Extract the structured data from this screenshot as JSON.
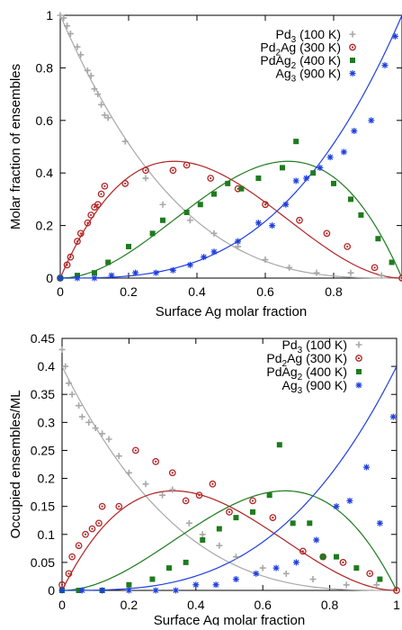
{
  "chart_data": [
    {
      "type": "scatter",
      "xlabel": "Surface Ag molar fraction",
      "ylabel": "Molar fraction of ensembles",
      "xlim": [
        0,
        1
      ],
      "ylim": [
        0,
        1
      ],
      "x_ticks": [
        "0",
        "0.2",
        "0.4",
        "0.6",
        "0.8"
      ],
      "y_ticks": [
        "0",
        "0.2",
        "0.4",
        "0.6",
        "0.8",
        "1"
      ],
      "legend_position": "top-right",
      "series": [
        {
          "label_main": "Pd",
          "label_sub": "3",
          "label_rest": " (100 K)",
          "color": "#a8a8a8",
          "marker": "plus",
          "curve": "pd3",
          "points": [
            [
              0.0,
              1.0
            ],
            [
              0.01,
              0.99
            ],
            [
              0.02,
              0.96
            ],
            [
              0.03,
              0.93
            ],
            [
              0.05,
              0.88
            ],
            [
              0.06,
              0.85
            ],
            [
              0.08,
              0.79
            ],
            [
              0.09,
              0.77
            ],
            [
              0.1,
              0.72
            ],
            [
              0.11,
              0.7
            ],
            [
              0.12,
              0.66
            ],
            [
              0.13,
              0.62
            ],
            [
              0.14,
              0.61
            ],
            [
              0.19,
              0.52
            ],
            [
              0.25,
              0.38
            ],
            [
              0.3,
              0.28
            ],
            [
              0.38,
              0.22
            ],
            [
              0.45,
              0.17
            ],
            [
              0.52,
              0.12
            ],
            [
              0.6,
              0.07
            ],
            [
              0.67,
              0.04
            ],
            [
              0.75,
              0.02
            ],
            [
              0.85,
              0.02
            ],
            [
              0.94,
              0.01
            ],
            [
              1.0,
              0.0
            ]
          ]
        },
        {
          "label_main": "Pd",
          "label_sub": "2",
          "label_rest": "Ag (300 K)",
          "color": "#b22222",
          "marker": "circle",
          "curve": "pd2ag",
          "points": [
            [
              0.0,
              0.0
            ],
            [
              0.02,
              0.05
            ],
            [
              0.03,
              0.08
            ],
            [
              0.05,
              0.14
            ],
            [
              0.06,
              0.17
            ],
            [
              0.08,
              0.21
            ],
            [
              0.09,
              0.24
            ],
            [
              0.1,
              0.27
            ],
            [
              0.11,
              0.28
            ],
            [
              0.12,
              0.32
            ],
            [
              0.13,
              0.35
            ],
            [
              0.19,
              0.36
            ],
            [
              0.25,
              0.41
            ],
            [
              0.33,
              0.41
            ],
            [
              0.37,
              0.43
            ],
            [
              0.44,
              0.38
            ],
            [
              0.52,
              0.34
            ],
            [
              0.6,
              0.28
            ],
            [
              0.7,
              0.22
            ],
            [
              0.78,
              0.17
            ],
            [
              0.84,
              0.12
            ],
            [
              0.92,
              0.04
            ],
            [
              1.0,
              0.0
            ]
          ]
        },
        {
          "label_main": "PdAg",
          "label_sub": "2",
          "label_rest": " (400 K)",
          "color": "#1e7b1e",
          "marker": "square",
          "curve": "pdag2",
          "points": [
            [
              0.0,
              0.0
            ],
            [
              0.05,
              0.01
            ],
            [
              0.1,
              0.02
            ],
            [
              0.14,
              0.06
            ],
            [
              0.2,
              0.12
            ],
            [
              0.27,
              0.17
            ],
            [
              0.3,
              0.22
            ],
            [
              0.37,
              0.25
            ],
            [
              0.41,
              0.28
            ],
            [
              0.45,
              0.32
            ],
            [
              0.49,
              0.36
            ],
            [
              0.53,
              0.34
            ],
            [
              0.58,
              0.38
            ],
            [
              0.65,
              0.42
            ],
            [
              0.69,
              0.52
            ],
            [
              0.74,
              0.4
            ],
            [
              0.8,
              0.36
            ],
            [
              0.85,
              0.3
            ],
            [
              0.88,
              0.24
            ],
            [
              0.93,
              0.15
            ],
            [
              0.97,
              0.06
            ]
          ]
        },
        {
          "label_main": "Ag",
          "label_sub": "3",
          "label_rest": " (900 K)",
          "color": "#1f3fe0",
          "marker": "star",
          "curve": "ag3",
          "points": [
            [
              0.0,
              0.0
            ],
            [
              0.05,
              0.0
            ],
            [
              0.1,
              0.0
            ],
            [
              0.15,
              0.01
            ],
            [
              0.22,
              0.02
            ],
            [
              0.28,
              0.02
            ],
            [
              0.33,
              0.03
            ],
            [
              0.38,
              0.05
            ],
            [
              0.42,
              0.08
            ],
            [
              0.45,
              0.1
            ],
            [
              0.52,
              0.14
            ],
            [
              0.58,
              0.21
            ],
            [
              0.62,
              0.2
            ],
            [
              0.66,
              0.28
            ],
            [
              0.69,
              0.37
            ],
            [
              0.72,
              0.38
            ],
            [
              0.76,
              0.42
            ],
            [
              0.79,
              0.46
            ],
            [
              0.83,
              0.48
            ],
            [
              0.86,
              0.56
            ],
            [
              0.91,
              0.6
            ],
            [
              0.95,
              0.81
            ],
            [
              0.98,
              0.92
            ]
          ]
        }
      ]
    },
    {
      "type": "scatter",
      "xlabel": "Surface Ag molar fraction",
      "ylabel": "Occupied ensembles/ML",
      "xlim": [
        0,
        1
      ],
      "ylim": [
        0,
        0.45
      ],
      "x_ticks": [
        "0",
        "0.2",
        "0.4",
        "0.6",
        "0.8",
        "1"
      ],
      "y_ticks": [
        "0",
        "0.05",
        "0.1",
        "0.15",
        "0.2",
        "0.25",
        "0.3",
        "0.35",
        "0.4",
        "0.45"
      ],
      "legend_position": "top-right",
      "series": [
        {
          "label_main": "Pd",
          "label_sub": "3",
          "label_rest": " (100 K)",
          "color": "#a8a8a8",
          "marker": "plus",
          "curve": "pd3b",
          "points": [
            [
              0.0,
              0.43
            ],
            [
              0.01,
              0.4
            ],
            [
              0.02,
              0.37
            ],
            [
              0.03,
              0.35
            ],
            [
              0.05,
              0.33
            ],
            [
              0.06,
              0.31
            ],
            [
              0.08,
              0.3
            ],
            [
              0.1,
              0.29
            ],
            [
              0.12,
              0.28
            ],
            [
              0.14,
              0.27
            ],
            [
              0.17,
              0.24
            ],
            [
              0.2,
              0.21
            ],
            [
              0.25,
              0.19
            ],
            [
              0.3,
              0.17
            ],
            [
              0.33,
              0.18
            ],
            [
              0.38,
              0.12
            ],
            [
              0.42,
              0.1
            ],
            [
              0.47,
              0.08
            ],
            [
              0.52,
              0.06
            ],
            [
              0.6,
              0.04
            ],
            [
              0.67,
              0.03
            ],
            [
              0.75,
              0.02
            ],
            [
              0.85,
              0.01
            ],
            [
              0.94,
              0.01
            ]
          ]
        },
        {
          "label_main": "Pd",
          "label_sub": "2",
          "label_rest": "Ag (300 K)",
          "color": "#b22222",
          "marker": "circle",
          "curve": "pd2agb",
          "points": [
            [
              0.0,
              0.01
            ],
            [
              0.02,
              0.03
            ],
            [
              0.03,
              0.06
            ],
            [
              0.05,
              0.08
            ],
            [
              0.07,
              0.1
            ],
            [
              0.09,
              0.11
            ],
            [
              0.11,
              0.12
            ],
            [
              0.12,
              0.15
            ],
            [
              0.17,
              0.15
            ],
            [
              0.22,
              0.25
            ],
            [
              0.28,
              0.23
            ],
            [
              0.33,
              0.21
            ],
            [
              0.37,
              0.16
            ],
            [
              0.41,
              0.17
            ],
            [
              0.45,
              0.19
            ],
            [
              0.5,
              0.14
            ],
            [
              0.57,
              0.16
            ],
            [
              0.63,
              0.13
            ],
            [
              0.72,
              0.07
            ],
            [
              0.78,
              0.06
            ],
            [
              0.84,
              0.05
            ],
            [
              0.92,
              0.03
            ],
            [
              1.0,
              0.0
            ]
          ]
        },
        {
          "label_main": "PdAg",
          "label_sub": "2",
          "label_rest": " (400 K)",
          "color": "#1e7b1e",
          "marker": "square",
          "curve": "pdag2b",
          "points": [
            [
              0.0,
              0.0
            ],
            [
              0.05,
              0.0
            ],
            [
              0.12,
              0.0
            ],
            [
              0.2,
              0.01
            ],
            [
              0.27,
              0.02
            ],
            [
              0.32,
              0.04
            ],
            [
              0.37,
              0.05
            ],
            [
              0.42,
              0.09
            ],
            [
              0.47,
              0.11
            ],
            [
              0.52,
              0.13
            ],
            [
              0.57,
              0.14
            ],
            [
              0.62,
              0.17
            ],
            [
              0.65,
              0.26
            ],
            [
              0.69,
              0.12
            ],
            [
              0.74,
              0.12
            ],
            [
              0.78,
              0.06
            ],
            [
              0.82,
              0.06
            ],
            [
              0.88,
              0.04
            ],
            [
              0.95,
              0.02
            ]
          ]
        },
        {
          "label_main": "Ag",
          "label_sub": "3",
          "label_rest": " (900 K)",
          "color": "#1f3fe0",
          "marker": "star",
          "curve": "ag3b",
          "points": [
            [
              0.0,
              0.0
            ],
            [
              0.06,
              0.0
            ],
            [
              0.12,
              0.0
            ],
            [
              0.2,
              0.0
            ],
            [
              0.28,
              0.0
            ],
            [
              0.34,
              0.0
            ],
            [
              0.4,
              0.01
            ],
            [
              0.46,
              0.01
            ],
            [
              0.52,
              0.02
            ],
            [
              0.58,
              0.03
            ],
            [
              0.64,
              0.04
            ],
            [
              0.7,
              0.05
            ],
            [
              0.76,
              0.09
            ],
            [
              0.82,
              0.15
            ],
            [
              0.86,
              0.16
            ],
            [
              0.91,
              0.22
            ],
            [
              0.95,
              0.12
            ],
            [
              0.99,
              0.31
            ]
          ]
        }
      ]
    }
  ]
}
